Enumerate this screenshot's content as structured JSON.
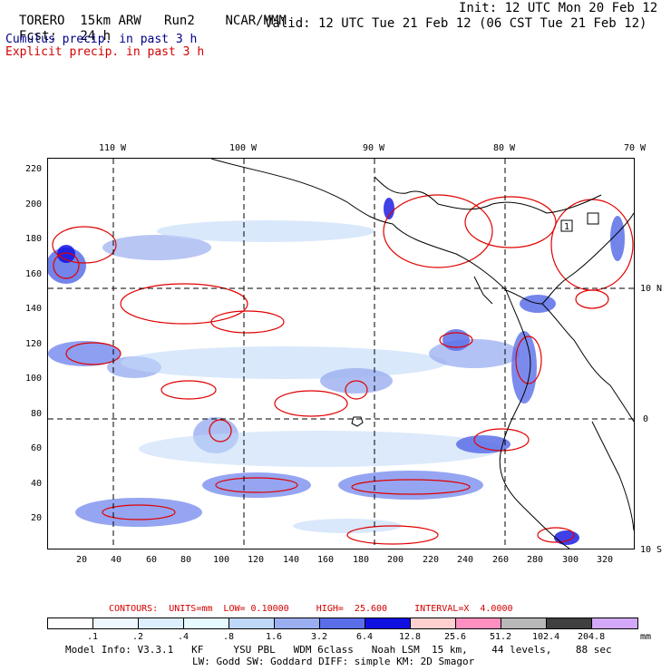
{
  "header": {
    "model": "TORERO",
    "resolution": "15km ARW",
    "run": "Run2",
    "org": "NCAR/MMM",
    "init_label": "Init: 12 UTC Mon 20 Feb 12",
    "fcst_label": "Fcst:",
    "fcst_value": "24 h",
    "valid_label": "Valid: 12 UTC Tue 21 Feb 12 (06 CST Tue 21 Feb 12)"
  },
  "fields": {
    "cumulus": "Cumulus precip. in past 3 h",
    "explicit": "Explicit precip. in past 3 h"
  },
  "colors": {
    "cumulus_text": "#00008b",
    "explicit_text": "#d40000",
    "contour": "#e00000",
    "coast": "#000000",
    "grid": "#000000"
  },
  "axes": {
    "x_ticks": [
      "20",
      "40",
      "60",
      "80",
      "100",
      "120",
      "140",
      "160",
      "180",
      "200",
      "220",
      "240",
      "260",
      "280",
      "300",
      "320"
    ],
    "y_ticks": [
      "20",
      "40",
      "60",
      "80",
      "100",
      "120",
      "140",
      "160",
      "180",
      "200",
      "220"
    ],
    "lon_labels": [
      "110 W",
      "100 W",
      "90 W",
      "80 W",
      "70 W"
    ],
    "lat_labels": [
      "10 N",
      "0",
      "10 S"
    ]
  },
  "map_labels": {
    "box_marker": "1"
  },
  "contours": {
    "text": "CONTOURS:  UNITS=mm  LOW= 0.10000     HIGH=  25.600     INTERVAL=X  4.0000",
    "low": 0.1,
    "high": 25.6,
    "interval_factor": 4.0
  },
  "legend": {
    "levels": [
      ".1",
      ".2",
      ".4",
      ".8",
      "1.6",
      "3.2",
      "6.4",
      "12.8",
      "25.6",
      "51.2",
      "102.4",
      "204.8"
    ],
    "colors": [
      "#ffffff",
      "#eef6ff",
      "#ddeeff",
      "#e6fbff",
      "#c0d8f8",
      "#9aaef0",
      "#5a6ee8",
      "#1010e0",
      "#ffd0d0",
      "#ff90c0",
      "#b8b8b8",
      "#404040",
      "#d4a8f8"
    ],
    "unit": "mm"
  },
  "footer": {
    "line1": "Model Info: V3.3.1   KF     YSU PBL   WDM 6class   Noah LSM  15 km,    44 levels,    88 sec",
    "line2": "LW: Godd SW: Goddard DIFF: simple KM: 2D Smagor"
  }
}
